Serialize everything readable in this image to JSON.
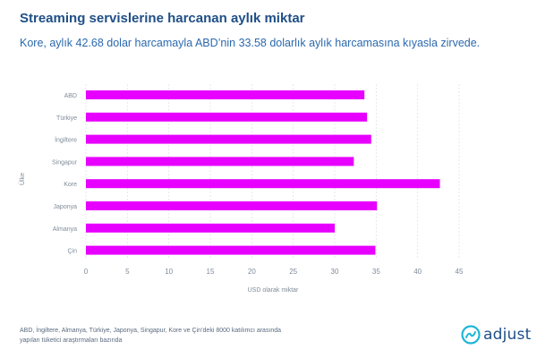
{
  "title": "Streaming servislerine harcanan aylık miktar",
  "subtitle": "Kore, aylık 42.68 dolar harcamayla ABD’nin 33.58 dolarlık aylık harcamasına kıyasla zirvede.",
  "footnote": {
    "line1": "ABD, İngiltere, Almanya, Türkiye, Japonya, Singapur, Kore ve Çin’deki 8000 katılımcı arasında",
    "line2": "yapılan tüketici araştırmaları bazında"
  },
  "logo": {
    "text": "adjust",
    "icon": "adjust-logo-icon"
  },
  "colors": {
    "bar": "#e700ff",
    "title": "#1f4f87",
    "subtitle": "#2b69ad",
    "grid": "#dde3ea",
    "tick": "#7f8b99"
  },
  "chart_data": {
    "type": "bar",
    "orientation": "horizontal",
    "categories": [
      "ABD",
      "Türkiye",
      "İngiltere",
      "Singapur",
      "Kore",
      "Japonya",
      "Almanya",
      "Çin"
    ],
    "values": [
      33.58,
      33.9,
      34.4,
      32.3,
      42.68,
      35.1,
      30.0,
      34.9
    ],
    "xticks": [
      0,
      5,
      10,
      15,
      20,
      25,
      30,
      35,
      40,
      45
    ],
    "xlim": [
      0,
      45
    ],
    "xlabel": "USD olarak miktar",
    "ylabel": "Ülke",
    "grid": "vertical dashed"
  }
}
